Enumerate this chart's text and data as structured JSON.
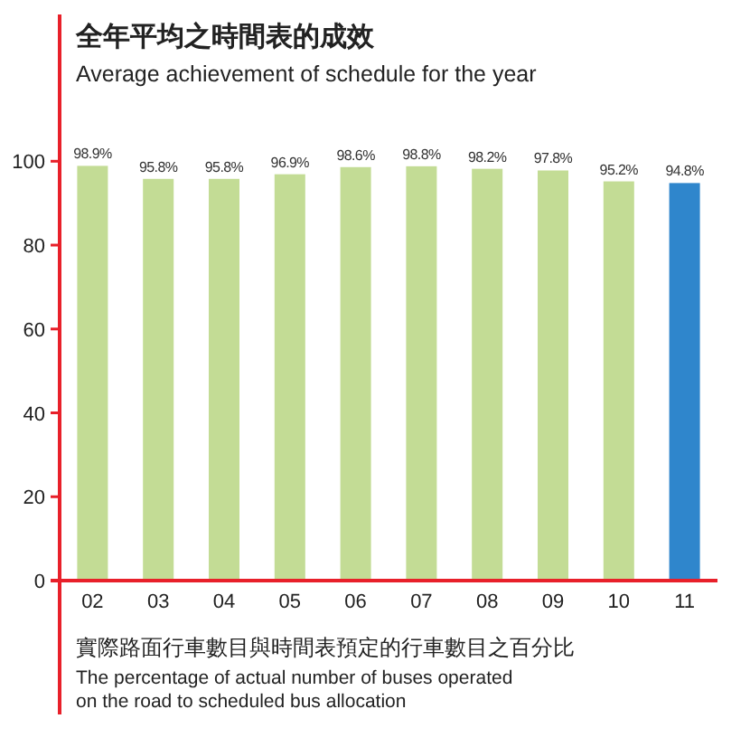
{
  "chart_data": {
    "type": "bar",
    "title": "全年平均之時間表的成效",
    "subtitle": "Average achievement of schedule for the year",
    "categories": [
      "02",
      "03",
      "04",
      "05",
      "06",
      "07",
      "08",
      "09",
      "10",
      "11"
    ],
    "values": [
      98.9,
      95.8,
      95.8,
      96.9,
      98.6,
      98.8,
      98.2,
      97.8,
      95.2,
      94.8
    ],
    "value_labels": [
      "98.9%",
      "95.8%",
      "95.8%",
      "96.9%",
      "98.6%",
      "98.8%",
      "98.2%",
      "97.8%",
      "95.2%",
      "94.8%"
    ],
    "colors": [
      "#c3dc95",
      "#c3dc95",
      "#c3dc95",
      "#c3dc95",
      "#c3dc95",
      "#c3dc95",
      "#c3dc95",
      "#c3dc95",
      "#c3dc95",
      "#2f86cc"
    ],
    "ylim": [
      0,
      135
    ],
    "yticks": [
      0,
      20,
      40,
      60,
      80,
      100
    ],
    "grid": false,
    "annotations": [
      "實際路面行車數目與時間表預定的行車數目之百分比",
      "The percentage of actual number of buses operated",
      "on the road to scheduled bus allocation"
    ]
  }
}
